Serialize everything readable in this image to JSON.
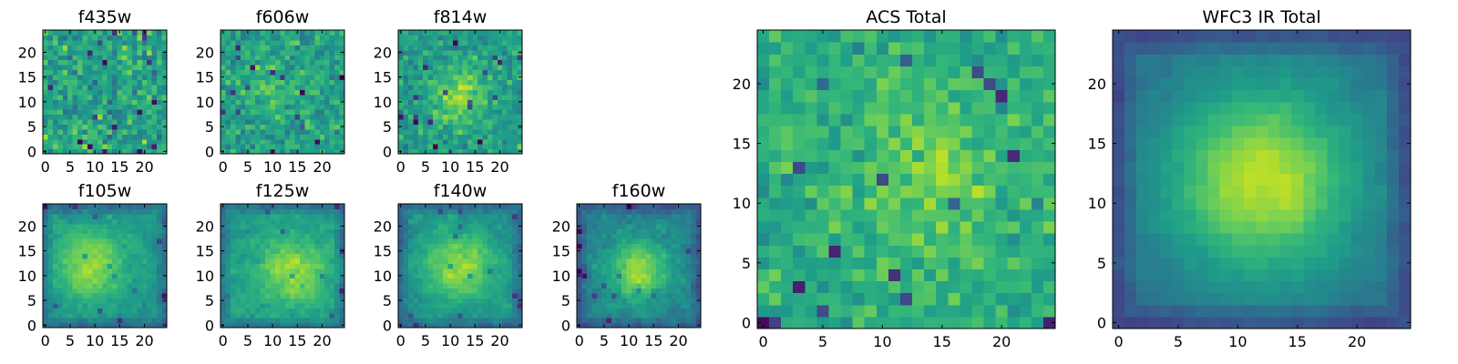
{
  "figure": {
    "colormap": "viridis",
    "colors": {
      "colormap_low": "#440154",
      "colormap_mid": "#21918c",
      "colormap_high": "#fde725",
      "axes_frame": "#000000",
      "background": "#ffffff"
    }
  },
  "chart_data": [
    {
      "type": "heatmap",
      "title": "f435w",
      "grid_size": 25,
      "pattern": "noise",
      "xlim": [
        0,
        24
      ],
      "ylim": [
        0,
        24
      ],
      "x_ticks": [
        0,
        5,
        10,
        15,
        20
      ],
      "y_ticks": [
        0,
        5,
        10,
        15,
        20
      ],
      "grid": false
    },
    {
      "type": "heatmap",
      "title": "f606w",
      "grid_size": 25,
      "pattern": "faint source near center",
      "xlim": [
        0,
        24
      ],
      "ylim": [
        0,
        24
      ],
      "x_ticks": [
        0,
        5,
        10,
        15,
        20
      ],
      "y_ticks": [
        0,
        5,
        10,
        15,
        20
      ],
      "grid": false
    },
    {
      "type": "heatmap",
      "title": "f814w",
      "grid_size": 25,
      "pattern": "source near center",
      "xlim": [
        0,
        24
      ],
      "ylim": [
        0,
        24
      ],
      "x_ticks": [
        0,
        5,
        10,
        15,
        20
      ],
      "y_ticks": [
        0,
        5,
        10,
        15,
        20
      ],
      "grid": false
    },
    {
      "type": "heatmap",
      "title": "f105w",
      "grid_size": 25,
      "pattern": "extended source near center",
      "xlim": [
        0,
        24
      ],
      "ylim": [
        0,
        24
      ],
      "x_ticks": [
        0,
        5,
        10,
        15,
        20
      ],
      "y_ticks": [
        0,
        5,
        10,
        15,
        20
      ],
      "grid": false
    },
    {
      "type": "heatmap",
      "title": "f125w",
      "grid_size": 25,
      "pattern": "extended source near center",
      "xlim": [
        0,
        24
      ],
      "ylim": [
        0,
        24
      ],
      "x_ticks": [
        0,
        5,
        10,
        15,
        20
      ],
      "y_ticks": [
        0,
        5,
        10,
        15,
        20
      ],
      "grid": false
    },
    {
      "type": "heatmap",
      "title": "f140w",
      "grid_size": 25,
      "pattern": "extended source near center",
      "xlim": [
        0,
        24
      ],
      "ylim": [
        0,
        24
      ],
      "x_ticks": [
        0,
        5,
        10,
        15,
        20
      ],
      "y_ticks": [
        0,
        5,
        10,
        15,
        20
      ],
      "grid": false
    },
    {
      "type": "heatmap",
      "title": "f160w",
      "grid_size": 25,
      "pattern": "extended source near center",
      "xlim": [
        0,
        24
      ],
      "ylim": [
        0,
        24
      ],
      "x_ticks": [
        0,
        5,
        10,
        15,
        20
      ],
      "y_ticks": [
        0,
        5,
        10,
        15,
        20
      ],
      "grid": false
    },
    {
      "type": "heatmap",
      "title": "ACS Total",
      "grid_size": 25,
      "pattern": "noise with faint source near center",
      "xlim": [
        0,
        24
      ],
      "ylim": [
        0,
        24
      ],
      "x_ticks": [
        0,
        5,
        10,
        15,
        20
      ],
      "y_ticks": [
        0,
        5,
        10,
        15,
        20
      ],
      "grid": false
    },
    {
      "type": "heatmap",
      "title": "WFC3 IR Total",
      "grid_size": 25,
      "pattern": "smooth extended source near center",
      "xlim": [
        0,
        24
      ],
      "ylim": [
        0,
        24
      ],
      "x_ticks": [
        0,
        5,
        10,
        15,
        20
      ],
      "y_ticks": [
        0,
        5,
        10,
        15,
        20
      ],
      "grid": false
    }
  ]
}
